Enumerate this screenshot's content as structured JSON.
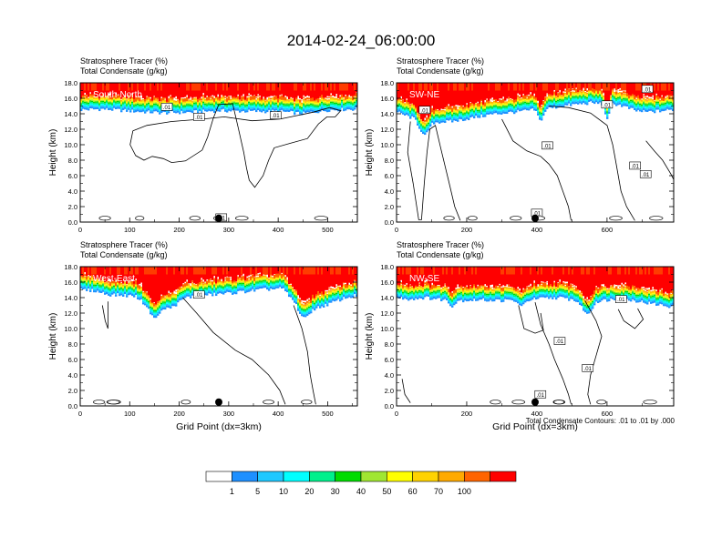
{
  "figure": {
    "title": "2014-02-24_06:00:00",
    "contour_note": "Total Condensate Contours: .01 to .01 by .000",
    "colorbar": {
      "colors": [
        "#ffffff",
        "#1e90ff",
        "#1ec8ff",
        "#00ffff",
        "#00f08c",
        "#00dc00",
        "#a0e632",
        "#ffff00",
        "#ffd200",
        "#ffaa00",
        "#ff6400",
        "#ff0000"
      ],
      "labels": [
        "1",
        "5",
        "10",
        "20",
        "30",
        "40",
        "50",
        "60",
        "70",
        "100"
      ]
    }
  },
  "chart_data": [
    {
      "type": "heatmap",
      "panel_label": "South-North",
      "title_line1": "Stratosphere Tracer   (%)",
      "title_line2": "Total Condensate   (g/kg)",
      "ylabel": "Height (km)",
      "xlabel": "",
      "xlim": [
        0,
        560
      ],
      "ylim": [
        0,
        18
      ],
      "xticks": [
        "0",
        "100",
        "200",
        "300",
        "400",
        "500"
      ],
      "yticks": [
        "0.0",
        "2.0",
        "4.0",
        "6.0",
        "8.0",
        "10.0",
        "12.0",
        "14.0",
        "16.0",
        "18.0"
      ],
      "marker_x": 280,
      "contour_labels": [
        {
          "text": ".01",
          "x": 240,
          "y": 13.6
        },
        {
          "text": ".01",
          "x": 395,
          "y": 13.8
        },
        {
          "text": ".01",
          "x": 175,
          "y": 14.9
        },
        {
          "text": ".01",
          "x": 285,
          "y": 0.6
        }
      ]
    },
    {
      "type": "heatmap",
      "panel_label": "SW-NE",
      "title_line1": "Stratosphere Tracer   (%)",
      "title_line2": "Total Condensate   (g/kg)",
      "ylabel": "Height (km)",
      "xlabel": "",
      "xlim": [
        0,
        790
      ],
      "ylim": [
        0,
        18
      ],
      "xticks": [
        "0",
        "200",
        "400",
        "600"
      ],
      "yticks": [
        "0.0",
        "2.0",
        "4.0",
        "6.0",
        "8.0",
        "10.0",
        "12.0",
        "14.0",
        "16.0",
        "18.0"
      ],
      "marker_x": 395,
      "contour_labels": [
        {
          "text": ".01",
          "x": 80,
          "y": 14.5
        },
        {
          "text": ".01",
          "x": 430,
          "y": 9.9
        },
        {
          "text": ".01",
          "x": 680,
          "y": 7.3
        },
        {
          "text": ".01",
          "x": 710,
          "y": 6.2
        },
        {
          "text": ".01",
          "x": 715,
          "y": 17.2
        },
        {
          "text": ".01",
          "x": 600,
          "y": 15.2
        },
        {
          "text": ".01",
          "x": 400,
          "y": 1.2
        }
      ]
    },
    {
      "type": "heatmap",
      "panel_label": "West-East",
      "title_line1": "Stratosphere Tracer   (%)",
      "title_line2": "Total Condensate   (g/kg)",
      "ylabel": "Height (km)",
      "xlabel": "Grid Point (dx=3km)",
      "xlim": [
        0,
        560
      ],
      "ylim": [
        0,
        18
      ],
      "xticks": [
        "0",
        "100",
        "200",
        "300",
        "400",
        "500"
      ],
      "yticks": [
        "0.0",
        "2.0",
        "4.0",
        "6.0",
        "8.0",
        "10.0",
        "12.0",
        "14.0",
        "16.0",
        "18.0"
      ],
      "marker_x": 280,
      "contour_labels": [
        {
          "text": ".01",
          "x": 240,
          "y": 14.4
        }
      ]
    },
    {
      "type": "heatmap",
      "panel_label": "NW-SE",
      "title_line1": "Stratosphere Tracer   (%)",
      "title_line2": "Total Condensate   (g/kg)",
      "ylabel": "Height (km)",
      "xlabel": "Grid Point (dx=3km)",
      "xlim": [
        0,
        790
      ],
      "ylim": [
        0,
        18
      ],
      "xticks": [
        "0",
        "200",
        "400",
        "600"
      ],
      "yticks": [
        "0.0",
        "2.0",
        "4.0",
        "6.0",
        "8.0",
        "10.0",
        "12.0",
        "14.0",
        "16.0",
        "18.0"
      ],
      "marker_x": 395,
      "contour_labels": [
        {
          "text": ".01",
          "x": 465,
          "y": 8.4
        },
        {
          "text": ".01",
          "x": 545,
          "y": 4.9
        },
        {
          "text": ".01",
          "x": 640,
          "y": 13.8
        },
        {
          "text": ".01",
          "x": 410,
          "y": 1.5
        }
      ]
    }
  ]
}
